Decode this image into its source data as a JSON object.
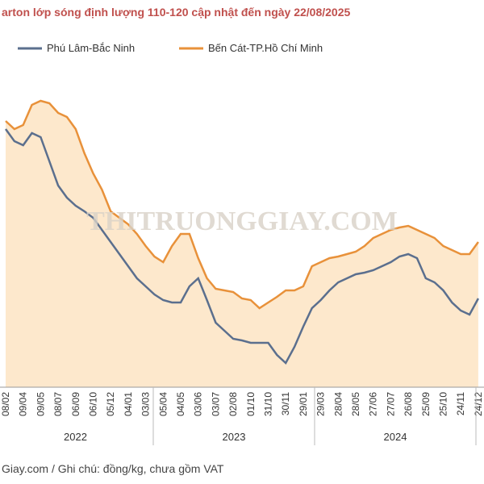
{
  "chart_data": {
    "type": "line",
    "title": "arton lớp sóng định lượng 110-120 cập nhật đến ngày 22/08/2025",
    "watermark": "THITRUONGGIAY.COM",
    "footer": "Giay.com / Ghi chú: đồng/kg, chưa gồm VAT",
    "categories": [
      "08/02",
      null,
      "09/04",
      null,
      "09/05",
      null,
      "08/07",
      null,
      "06/09",
      null,
      "06/10",
      null,
      "05/12",
      null,
      "04/01",
      null,
      "03/03",
      null,
      "05/04",
      null,
      "04/05",
      null,
      "03/06",
      null,
      "03/07",
      null,
      "02/08",
      null,
      "01/10",
      null,
      "31/10",
      null,
      "30/11",
      null,
      "29/01",
      null,
      "29/03",
      null,
      "28/04",
      null,
      "28/05",
      null,
      "27/06",
      null,
      "27/07",
      null,
      "26/08",
      null,
      "25/09",
      null,
      "25/10",
      null,
      "24/11",
      null,
      "24/12"
    ],
    "x_groups": [
      "2022",
      "2023",
      "2024"
    ],
    "ylim": [
      0,
      100
    ],
    "series": [
      {
        "name": "Phú Lâm-Bắc Ninh",
        "color": "#5b6f8e",
        "values": [
          80,
          76.25,
          75,
          78.75,
          77.5,
          70,
          62.5,
          58.75,
          56.25,
          54.5,
          52.5,
          48.75,
          45,
          41.25,
          37.5,
          33.75,
          31.25,
          28.75,
          27,
          26.25,
          26.25,
          31.25,
          33.75,
          27,
          20,
          17.5,
          15,
          14.5,
          13.75,
          13.75,
          13.75,
          10,
          7.5,
          12.5,
          18.75,
          24.5,
          27,
          30,
          32.5,
          33.75,
          35,
          35.5,
          36.25,
          37.5,
          38.75,
          40.5,
          41.25,
          40,
          33.75,
          32.5,
          30,
          26.25,
          23.75,
          22.5,
          27.5
        ]
      },
      {
        "name": "Bến Cát-TP.Hồ Chí Minh",
        "color": "#e8913a",
        "fill": "#fde8cc",
        "values": [
          82.5,
          80,
          81.25,
          87.5,
          88.75,
          88,
          85,
          83.75,
          80,
          72.5,
          66.25,
          61.25,
          54.5,
          52.5,
          50.5,
          47.5,
          43.75,
          40.5,
          38.75,
          43.75,
          47.5,
          47.5,
          40,
          33.75,
          30.5,
          30,
          29.5,
          27.5,
          27,
          24.5,
          26.25,
          28,
          30,
          30,
          31.25,
          37.5,
          38.75,
          40,
          40.5,
          41.25,
          42,
          43.75,
          46.25,
          47.5,
          48.75,
          49.5,
          50,
          48.75,
          47.5,
          46.25,
          43.75,
          42.5,
          41.25,
          41.25,
          45
        ]
      }
    ]
  }
}
